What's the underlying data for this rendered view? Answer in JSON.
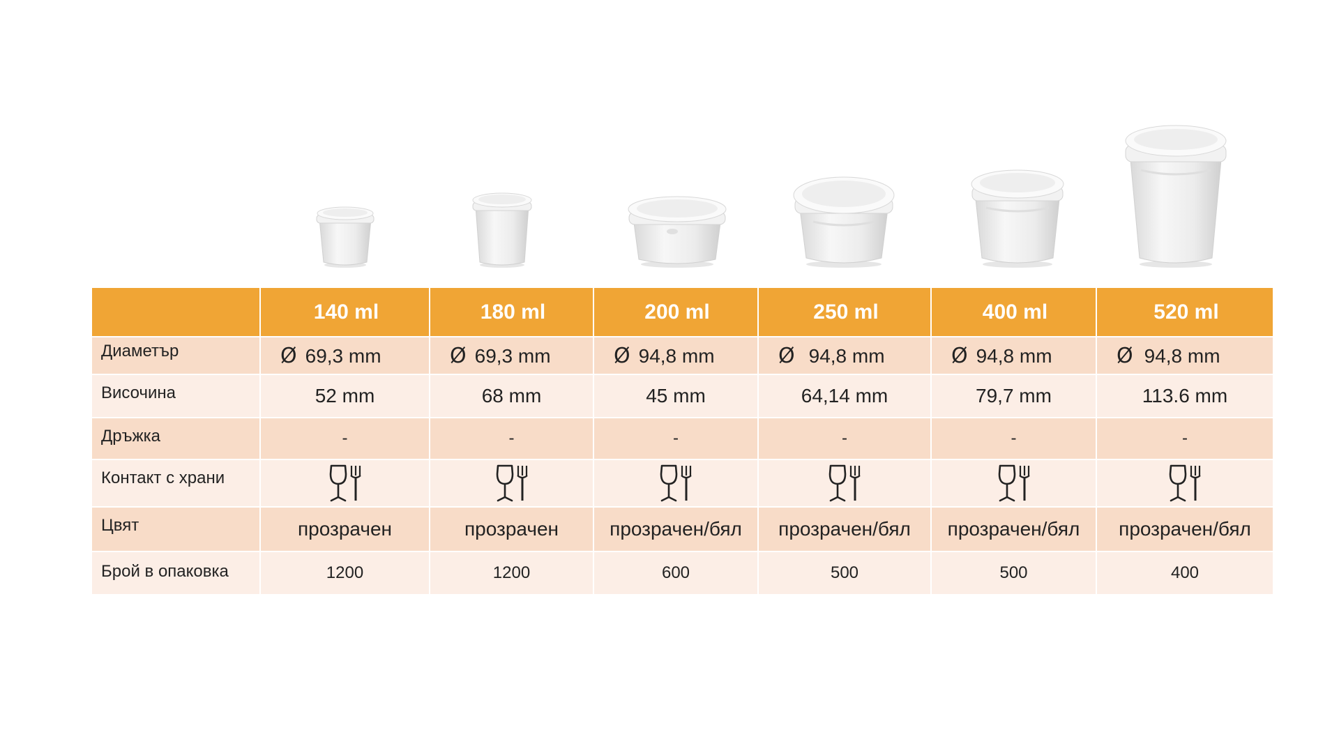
{
  "diameter_symbol": "Ø",
  "row_labels": {
    "diameter": "Диаметър",
    "height": "Височина",
    "handle": "Дръжка",
    "food_contact": "Контакт с храни",
    "color": "Цвят",
    "pack_count": "Брой в опаковка"
  },
  "products": [
    {
      "volume": "140 ml",
      "diameter": "69,3 mm",
      "height": "52 mm",
      "handle": "-",
      "food_contact_icon": "food-safe-icon",
      "color": "прозрачен",
      "pack_count": "1200"
    },
    {
      "volume": "180 ml",
      "diameter": "69,3 mm",
      "height": "68 mm",
      "handle": "-",
      "food_contact_icon": "food-safe-icon",
      "color": "прозрачен",
      "pack_count": "1200"
    },
    {
      "volume": "200 ml",
      "diameter": "94,8 mm",
      "height": "45 mm",
      "handle": "-",
      "food_contact_icon": "food-safe-icon",
      "color": "прозрачен/бял",
      "pack_count": "600"
    },
    {
      "volume": "250 ml",
      "diameter": "94,8 mm",
      "height": "64,14 mm",
      "handle": "-",
      "food_contact_icon": "food-safe-icon",
      "color": "прозрачен/бял",
      "pack_count": "500"
    },
    {
      "volume": "400 ml",
      "diameter": "94,8 mm",
      "height": "79,7 mm",
      "handle": "-",
      "food_contact_icon": "food-safe-icon",
      "color": "прозрачен/бял",
      "pack_count": "500"
    },
    {
      "volume": "520 ml",
      "diameter": "94,8 mm",
      "height": "113.6 mm",
      "handle": "-",
      "food_contact_icon": "food-safe-icon",
      "color": "прозрачен/бял",
      "pack_count": "400"
    }
  ],
  "colors": {
    "header": "#f0a535",
    "row_dark": "#f8dcc8",
    "row_light": "#fceee6",
    "text": "#222222"
  }
}
